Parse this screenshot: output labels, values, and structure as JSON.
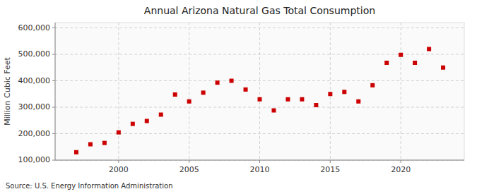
{
  "chart_data": {
    "type": "scatter",
    "title": "Annual Arizona Natural Gas Total Consumption",
    "y_label": "Million Cubic Feet",
    "annotations": [
      "Source: U.S. Energy Information Administration"
    ],
    "x": [
      1997,
      1998,
      1999,
      2000,
      2001,
      2002,
      2003,
      2004,
      2005,
      2006,
      2007,
      2008,
      2009,
      2010,
      2011,
      2012,
      2013,
      2014,
      2015,
      2016,
      2017,
      2018,
      2019,
      2020,
      2021,
      2022,
      2023
    ],
    "values": [
      130000,
      160000,
      165000,
      205000,
      237000,
      248000,
      272000,
      348000,
      322000,
      355000,
      393000,
      400000,
      367000,
      330000,
      288000,
      330000,
      330000,
      308000,
      350000,
      358000,
      322000,
      383000,
      468000,
      498000,
      468000,
      520000,
      450000
    ],
    "color": "#cc0000",
    "marker": "square",
    "xlim": [
      1995.5,
      2024.5
    ],
    "ylim": [
      100000,
      620000
    ],
    "xticks": [
      2000,
      2005,
      2010,
      2015,
      2020
    ],
    "yticks": [
      {
        "value": 100000,
        "label": "100,000"
      },
      {
        "value": 200000,
        "label": "200,000"
      },
      {
        "value": 300000,
        "label": "300,000"
      },
      {
        "value": 400000,
        "label": "400,000"
      },
      {
        "value": 500000,
        "label": "500,000"
      },
      {
        "value": 600000,
        "label": "600,000"
      }
    ],
    "grid": true
  }
}
